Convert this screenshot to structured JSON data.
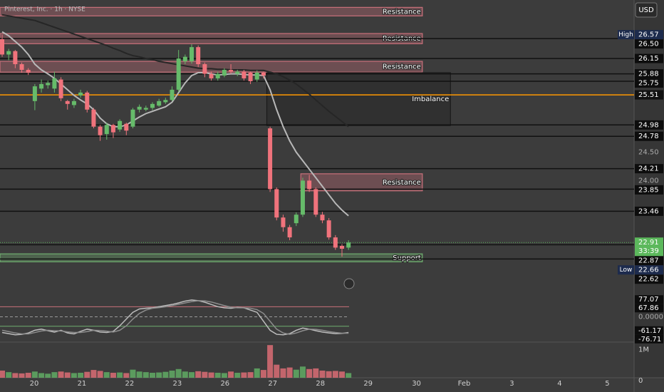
{
  "title": "Pinterest, Inc. · 1h · NYSE",
  "currency": "USD",
  "chart_data": {
    "type": "candlestick",
    "up_color": "#66bb6a",
    "down_color": "#f0737c",
    "xlim": [
      -0.33,
      96.7
    ],
    "ylim": [
      22.16,
      27.18
    ],
    "xticks": [
      {
        "value": 4.9,
        "label": "20"
      },
      {
        "value": 12.2,
        "label": "21"
      },
      {
        "value": 19.5,
        "label": "22"
      },
      {
        "value": 26.8,
        "label": "23"
      },
      {
        "value": 34.1,
        "label": "26"
      },
      {
        "value": 41.4,
        "label": "27"
      },
      {
        "value": 48.7,
        "label": "28"
      },
      {
        "value": 56,
        "label": "29"
      },
      {
        "value": 63.4,
        "label": "30"
      },
      {
        "value": 70.7,
        "label": "Feb"
      },
      {
        "value": 78,
        "label": "3"
      },
      {
        "value": 85.3,
        "label": "4"
      },
      {
        "value": 92.6,
        "label": "5"
      }
    ],
    "yticks": [
      {
        "value": 24.5,
        "label": "24.50"
      },
      {
        "value": 24,
        "label": "24.00"
      }
    ],
    "open": [
      26.49,
      26.22,
      26.28,
      26.05,
      25.95,
      25.4,
      25.62,
      25.68,
      25.62,
      25.78,
      25.4,
      25.33,
      25.5,
      25.55,
      25.25,
      24.95,
      24.82,
      24.98,
      24.9,
      25.0,
      24.95,
      25.25,
      25.25,
      25.28,
      25.32,
      25.38,
      25.42,
      25.6,
      26.1,
      26.1,
      26.35,
      26.05,
      25.88,
      25.8,
      25.85,
      25.95,
      25.88,
      25.92,
      25.9,
      25.78,
      25.9,
      24.92,
      23.85,
      23.35,
      23.18,
      23.25,
      23.4,
      24.0,
      23.85,
      23.4,
      23.3,
      23.0,
      22.85,
      22.82
    ],
    "high": [
      26.57,
      26.32,
      26.3,
      26.08,
      25.98,
      25.7,
      25.78,
      25.76,
      25.92,
      25.82,
      25.42,
      25.44,
      25.6,
      25.58,
      25.28,
      24.98,
      25.02,
      25.0,
      25.08,
      25.02,
      25.28,
      25.34,
      25.32,
      25.38,
      25.44,
      25.46,
      25.66,
      26.3,
      26.22,
      26.4,
      26.38,
      26.08,
      25.92,
      25.92,
      25.98,
      26.05,
      25.95,
      25.95,
      25.92,
      25.94,
      25.92,
      24.95,
      23.88,
      23.4,
      23.22,
      23.44,
      24.05,
      24.1,
      23.88,
      23.45,
      23.34,
      23.04,
      22.88,
      22.95
    ],
    "low": [
      26.18,
      26.12,
      25.98,
      25.9,
      25.86,
      25.24,
      25.55,
      25.62,
      25.55,
      25.4,
      25.25,
      25.28,
      25.46,
      25.2,
      24.92,
      24.7,
      24.72,
      24.75,
      24.86,
      24.8,
      24.92,
      25.2,
      25.22,
      25.24,
      25.3,
      25.35,
      25.4,
      25.56,
      26.05,
      26.06,
      26.0,
      25.82,
      25.76,
      25.76,
      25.82,
      25.88,
      25.84,
      25.76,
      25.7,
      25.74,
      25.8,
      23.8,
      23.3,
      23.1,
      22.95,
      23.2,
      23.36,
      23.8,
      23.36,
      23.25,
      22.96,
      22.78,
      22.66,
      22.78
    ],
    "close": [
      26.22,
      26.28,
      26.05,
      25.95,
      25.9,
      25.66,
      25.7,
      25.72,
      25.8,
      25.45,
      25.35,
      25.4,
      25.55,
      25.25,
      24.95,
      24.8,
      24.98,
      24.85,
      25.05,
      24.88,
      25.25,
      25.3,
      25.28,
      25.35,
      25.4,
      25.42,
      25.6,
      26.15,
      26.18,
      26.35,
      26.05,
      25.88,
      25.8,
      25.88,
      25.95,
      25.92,
      25.92,
      25.8,
      25.75,
      25.9,
      25.85,
      23.85,
      23.35,
      23.18,
      23.0,
      23.4,
      24.0,
      23.85,
      23.4,
      23.3,
      23.0,
      22.82,
      22.8,
      22.91
    ],
    "moving_averages": [
      {
        "color": "#b8b8b8",
        "values": [
          26.62,
          26.55,
          26.45,
          26.35,
          26.22,
          26.05,
          25.95,
          25.88,
          25.8,
          25.7,
          25.6,
          25.5,
          25.42,
          25.35,
          25.25,
          25.1,
          25.0,
          24.95,
          24.95,
          24.98,
          25.05,
          25.12,
          25.18,
          25.22,
          25.26,
          25.3,
          25.38,
          25.55,
          25.72,
          25.85,
          25.9,
          25.9,
          25.88,
          25.86,
          25.87,
          25.88,
          25.88,
          25.87,
          25.86,
          25.86,
          25.85,
          25.6,
          25.25,
          24.95,
          24.7,
          24.5,
          24.35,
          24.2,
          24.05,
          23.9,
          23.75,
          23.6,
          23.48,
          23.38
        ]
      },
      {
        "color": "#262626",
        "values": [
          26.92,
          26.9,
          26.88,
          26.86,
          26.84,
          26.82,
          26.78,
          26.74,
          26.7,
          26.66,
          26.62,
          26.58,
          26.54,
          26.5,
          26.46,
          26.42,
          26.38,
          26.33,
          26.29,
          26.24,
          26.2,
          26.18,
          26.15,
          26.13,
          26.1,
          26.08,
          26.06,
          26.04,
          26.02,
          26.0,
          25.98,
          25.97,
          25.97,
          25.96,
          25.96,
          25.95,
          25.95,
          25.95,
          25.94,
          25.94,
          25.94,
          25.91,
          25.88,
          25.83,
          25.77,
          25.7,
          25.61,
          25.52,
          25.42,
          25.32,
          25.22,
          25.13,
          25.04,
          24.95
        ]
      }
    ],
    "zones": [
      {
        "label": "Resistance",
        "top": 27.05,
        "bottom": 26.9,
        "start": -0.33,
        "end": 64.3,
        "color": "#c9707a"
      },
      {
        "label": "Resistance",
        "top": 26.59,
        "bottom": 26.41,
        "start": -0.33,
        "end": 64.3,
        "color": "#c9707a"
      },
      {
        "label": "Resistance",
        "top": 26.1,
        "bottom": 25.91,
        "start": -0.33,
        "end": 64.3,
        "color": "#c9707a"
      },
      {
        "label": "Imbalance",
        "top": 25.9,
        "bottom": 24.97,
        "start": 40.5,
        "end": 68.6,
        "color": "#1a1a1a"
      },
      {
        "label": "Resistance",
        "top": 24.12,
        "bottom": 23.82,
        "start": 45.7,
        "end": 64.3,
        "color": "#c9707a"
      },
      {
        "label": "Support",
        "top": 22.71,
        "bottom": 22.57,
        "start": -0.33,
        "end": 64.3,
        "color": "#6fae6f"
      }
    ],
    "levels": [
      {
        "value": 26.5,
        "label": "26.50"
      },
      {
        "value": 26.15,
        "label": "26.15"
      },
      {
        "value": 25.88,
        "label": "25.88"
      },
      {
        "value": 25.75,
        "label": "25.75"
      },
      {
        "value": 24.98,
        "label": "24.98"
      },
      {
        "value": 24.78,
        "label": "24.78"
      },
      {
        "value": 24.21,
        "label": "24.21"
      },
      {
        "value": 23.85,
        "label": "23.85"
      },
      {
        "value": 23.46,
        "label": "23.46"
      },
      {
        "value": 22.87,
        "label": "22.87"
      },
      {
        "value": 22.62,
        "label": "22.62"
      }
    ],
    "level_color": "#111111",
    "key_level": {
      "value": 25.51,
      "label": "25.51",
      "color": "#ff9800"
    },
    "session_high": {
      "name": "High",
      "value": 26.57
    },
    "session_low": {
      "name": "Low",
      "value": 22.66
    },
    "last": {
      "value": 22.91,
      "countdown": "33:39",
      "color": "#5cb85c"
    },
    "oscillator": {
      "ylim": [
        -100,
        100
      ],
      "levels": [
        {
          "value": 45,
          "color": "#c9707a"
        },
        {
          "value": 0,
          "color": "#9a9a9a"
        },
        {
          "value": -42,
          "color": "#6fae6f"
        }
      ],
      "ticks": [
        77.07,
        67.86,
        {
          "value": 0,
          "label": "0.0000"
        },
        -61.17,
        -76.71
      ],
      "series": [
        {
          "color": "#bdbdbd",
          "values": [
            -70,
            -75,
            -80,
            -78,
            -72,
            -60,
            -55,
            -62,
            -68,
            -60,
            -72,
            -76,
            -65,
            -55,
            -60,
            -68,
            -70,
            -65,
            -40,
            -10,
            20,
            35,
            38,
            40,
            45,
            50,
            55,
            62,
            70,
            75,
            72,
            65,
            55,
            45,
            40,
            38,
            42,
            40,
            30,
            20,
            -20,
            -60,
            -78,
            -80,
            -75,
            -60,
            -50,
            -55,
            -62,
            -68,
            -72,
            -75,
            -74,
            -70
          ]
        },
        {
          "color": "#8d8d8d",
          "values": [
            -60,
            -66,
            -72,
            -76,
            -76,
            -70,
            -63,
            -60,
            -62,
            -63,
            -67,
            -70,
            -70,
            -66,
            -60,
            -61,
            -64,
            -68,
            -60,
            -40,
            -10,
            15,
            30,
            38,
            41,
            45,
            50,
            56,
            62,
            68,
            72,
            71,
            66,
            58,
            50,
            43,
            40,
            40,
            38,
            32,
            15,
            -20,
            -55,
            -72,
            -78,
            -72,
            -62,
            -55,
            -56,
            -60,
            -66,
            -70,
            -73,
            -73
          ]
        }
      ]
    },
    "volume": {
      "ylim": [
        0,
        1100000
      ],
      "ticks": [
        {
          "value": 1000000,
          "label": "1M"
        },
        0
      ],
      "values": [
        230000,
        180000,
        150000,
        140000,
        160000,
        200000,
        150000,
        130000,
        180000,
        200000,
        170000,
        150000,
        160000,
        190000,
        250000,
        220000,
        180000,
        160000,
        170000,
        150000,
        260000,
        200000,
        180000,
        160000,
        170000,
        190000,
        230000,
        280000,
        200000,
        180000,
        210000,
        190000,
        170000,
        160000,
        150000,
        200000,
        160000,
        170000,
        180000,
        300000,
        250000,
        1050000,
        420000,
        300000,
        330000,
        260000,
        360000,
        280000,
        300000,
        230000,
        210000,
        220000,
        200000,
        150000
      ]
    }
  }
}
